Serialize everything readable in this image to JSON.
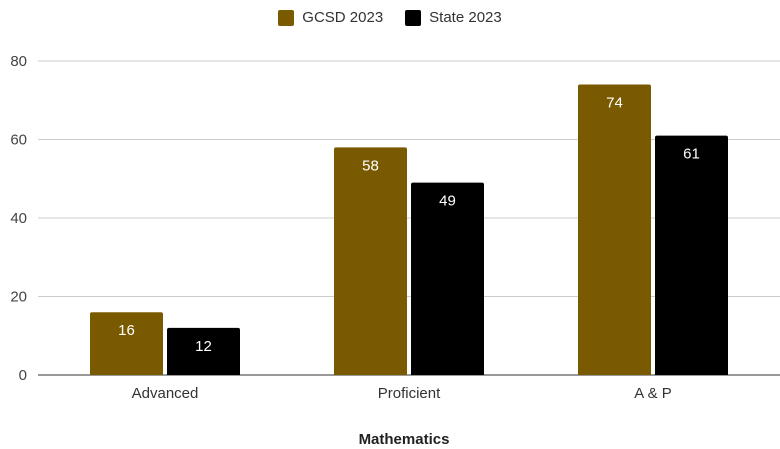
{
  "chart_data": {
    "type": "bar",
    "categories": [
      "Advanced",
      "Proficient",
      "A & P"
    ],
    "series": [
      {
        "name": "GCSD 2023",
        "values": [
          16,
          58,
          74
        ],
        "color": "#7a5a00"
      },
      {
        "name": "State 2023",
        "values": [
          12,
          49,
          61
        ],
        "color": "#000000"
      }
    ],
    "xlabel": "Mathematics",
    "ylabel": "",
    "ylim": [
      0,
      80
    ],
    "yticks": [
      0,
      20,
      40,
      60,
      80
    ],
    "grid": true,
    "legend_position": "top-center",
    "data_label_color": "#ffffff"
  }
}
